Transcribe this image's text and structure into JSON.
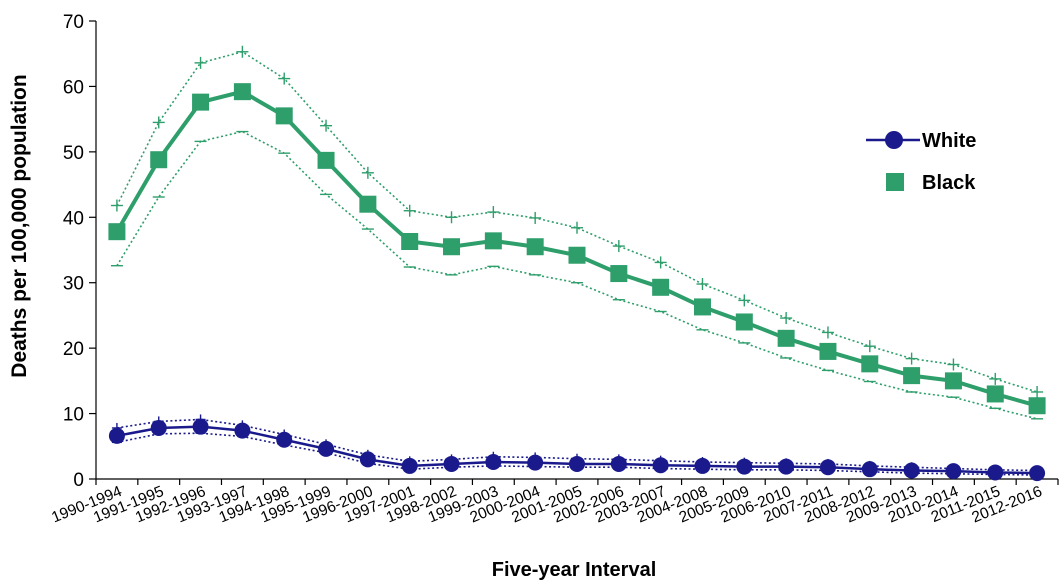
{
  "chart_data": {
    "type": "line",
    "title": "",
    "xlabel": "Five-year Interval",
    "ylabel": "Deaths per 100,000 population",
    "ylim": [
      0,
      70
    ],
    "yticks": [
      0,
      10,
      20,
      30,
      40,
      50,
      60,
      70
    ],
    "grid": false,
    "legend_position": "right",
    "categories": [
      "1990-1994",
      "1991-1995",
      "1992-1996",
      "1993-1997",
      "1994-1998",
      "1995-1999",
      "1996-2000",
      "1997-2001",
      "1998-2002",
      "1999-2003",
      "2000-2004",
      "2001-2005",
      "2002-2006",
      "2003-2007",
      "2004-2008",
      "2005-2009",
      "2006-2010",
      "2007-2011",
      "2008-2012",
      "2009-2013",
      "2010-2014",
      "2011-2015",
      "2012-2016"
    ],
    "series": [
      {
        "name": "White",
        "color": "#1a1a8c",
        "marker": "circle",
        "values": [
          6.6,
          7.8,
          8.0,
          7.4,
          6.0,
          4.6,
          3.0,
          2.0,
          2.3,
          2.6,
          2.5,
          2.3,
          2.3,
          2.1,
          2.0,
          1.9,
          1.9,
          1.8,
          1.5,
          1.3,
          1.2,
          1.0,
          0.9
        ],
        "upper": [
          7.8,
          8.8,
          9.1,
          8.2,
          6.8,
          5.3,
          3.7,
          2.7,
          3.0,
          3.4,
          3.3,
          3.1,
          3.0,
          2.8,
          2.6,
          2.5,
          2.4,
          2.3,
          2.0,
          1.8,
          1.6,
          1.4,
          1.3
        ],
        "lower": [
          5.6,
          6.9,
          7.0,
          6.5,
          5.2,
          4.0,
          2.4,
          1.5,
          1.8,
          2.0,
          1.9,
          1.8,
          1.8,
          1.6,
          1.5,
          1.4,
          1.4,
          1.3,
          1.1,
          0.9,
          0.8,
          0.7,
          0.6
        ]
      },
      {
        "name": "Black",
        "color": "#2e9e6b",
        "marker": "square",
        "values": [
          37.8,
          48.8,
          57.6,
          59.2,
          55.5,
          48.7,
          42.0,
          36.3,
          35.5,
          36.4,
          35.5,
          34.2,
          31.4,
          29.3,
          26.3,
          24.0,
          21.5,
          19.5,
          17.6,
          15.8,
          15.0,
          13.0,
          11.2
        ],
        "upper": [
          41.8,
          54.5,
          63.6,
          65.3,
          61.2,
          54.0,
          46.8,
          41.0,
          40.0,
          40.8,
          39.9,
          38.4,
          35.6,
          33.1,
          29.8,
          27.3,
          24.6,
          22.4,
          20.3,
          18.4,
          17.5,
          15.3,
          13.3
        ],
        "lower": [
          32.6,
          43.1,
          51.6,
          53.1,
          49.8,
          43.5,
          38.2,
          32.4,
          31.2,
          32.5,
          31.2,
          30.0,
          27.4,
          25.6,
          22.8,
          20.8,
          18.5,
          16.6,
          14.9,
          13.3,
          12.5,
          10.8,
          9.2
        ]
      }
    ]
  }
}
